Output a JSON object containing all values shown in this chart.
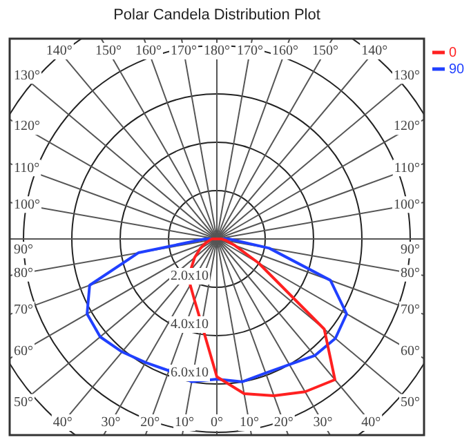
{
  "chart_data": {
    "type": "radar",
    "title": "Polar Candela Distribution Plot",
    "categories": [
      "180°",
      "170°",
      "160°",
      "150°",
      "140°",
      "130°",
      "120°",
      "110°",
      "100°",
      "90°",
      "80°",
      "70°",
      "60°",
      "50°",
      "40°",
      "30°",
      "20°",
      "10°",
      "0°",
      "10°",
      "20°",
      "30°",
      "40°",
      "50°",
      "60°",
      "70°",
      "80°",
      "90°",
      "100°",
      "110°",
      "120°",
      "130°",
      "140°",
      "150°",
      "160°",
      "170°"
    ],
    "series": [
      {
        "name": "0",
        "color": "#ff2020",
        "values": [
          0,
          0,
          0,
          0,
          0,
          0,
          0,
          0,
          0,
          0.2,
          0.4,
          0.8,
          2.0,
          5.8,
          7.6,
          7.3,
          6.9,
          6.5,
          5.7,
          3.6,
          2.7,
          2.2,
          1.7,
          1.2,
          0.8,
          0.5,
          0.3,
          0.2,
          0,
          0,
          0,
          0,
          0,
          0,
          0,
          0
        ]
      },
      {
        "name": "90",
        "color": "#2040ff",
        "values": [
          0,
          0,
          0,
          0,
          0,
          0,
          0,
          0,
          0,
          0.5,
          2.2,
          5.0,
          6.2,
          6.4,
          6.3,
          6.0,
          5.9,
          6.0,
          5.8,
          6.0,
          5.8,
          5.9,
          6.1,
          6.3,
          6.2,
          5.6,
          3.3,
          0.5,
          0,
          0,
          0,
          0,
          0,
          0,
          0,
          0
        ]
      }
    ],
    "ylim": [
      0,
      10
    ],
    "yticks": [
      {
        "value": 2,
        "label": "2.0x10"
      },
      {
        "value": 4,
        "label": "4.0x10"
      },
      {
        "value": 6,
        "label": "6.0x10"
      }
    ],
    "grid": true,
    "legend": "top right"
  }
}
